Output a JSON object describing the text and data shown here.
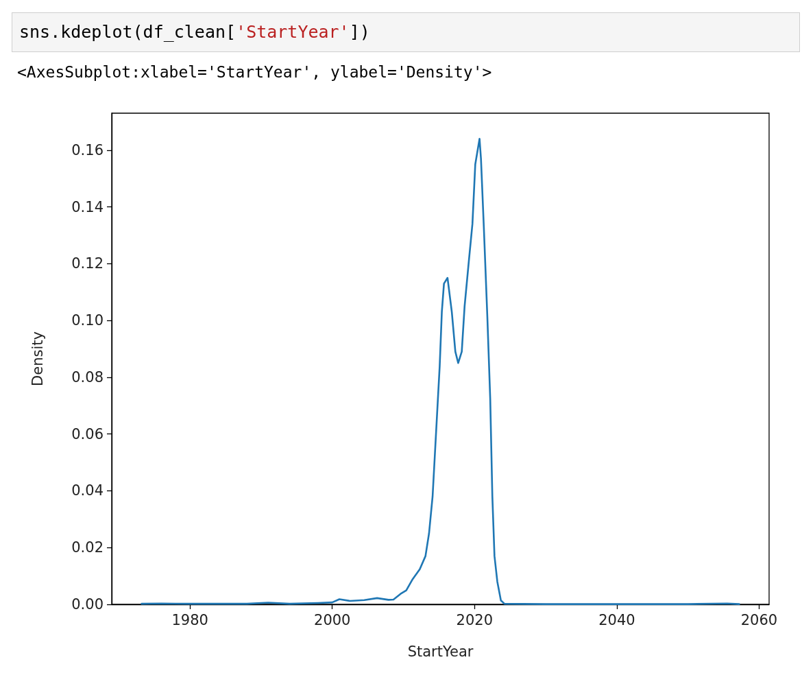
{
  "chart_data": {
    "type": "line",
    "annotations": [
      "sns.kdeplot(df_clean['StartYear'])",
      "<AxesSubplot:xlabel='StartYear', ylabel='Density'>"
    ],
    "xlabel": "StartYear",
    "ylabel": "Density",
    "series": [
      {
        "color": "#1f77b4",
        "x": [
          1973.2,
          1976,
          1980,
          1988,
          1991,
          1994,
          1998,
          2000,
          2001,
          2002.5,
          2004.5,
          2006.3,
          2007.9,
          2008.6,
          2009.6,
          2010.4,
          2011.3,
          2012.3,
          2013.1,
          2013.6,
          2014.1,
          2014.6,
          2015.1,
          2015.4,
          2015.7,
          2016.2,
          2016.8,
          2017.3,
          2017.7,
          2018.2,
          2018.6,
          2019.2,
          2019.7,
          2020.1,
          2020.7,
          2020.9,
          2021.3,
          2021.8,
          2022.2,
          2022.5,
          2022.8,
          2023.2,
          2023.7,
          2024.2,
          2030,
          2040,
          2050,
          2055.5,
          2057.2
        ],
        "values": [
          0.0002,
          0.0003,
          0.0002,
          0.0002,
          0.0006,
          0.0002,
          0.0005,
          0.0007,
          0.0018,
          0.0012,
          0.0015,
          0.0022,
          0.0016,
          0.0017,
          0.0037,
          0.0049,
          0.0089,
          0.0124,
          0.017,
          0.025,
          0.038,
          0.061,
          0.084,
          0.103,
          0.113,
          0.115,
          0.103,
          0.089,
          0.085,
          0.089,
          0.105,
          0.121,
          0.134,
          0.155,
          0.164,
          0.157,
          0.133,
          0.101,
          0.0725,
          0.038,
          0.017,
          0.008,
          0.0014,
          0.0002,
          0.0001,
          0.0001,
          0.0001,
          0.0003,
          0.0001
        ]
      }
    ],
    "xlim": [
      1969,
      2061.4
    ],
    "xticks": [
      1980,
      2000,
      2020,
      2040,
      2060
    ],
    "ylim": [
      0,
      0.173
    ],
    "yticks": [
      {
        "value": 0,
        "label": "0.00"
      },
      {
        "value": 0.02,
        "label": "0.02"
      },
      {
        "value": 0.04,
        "label": "0.04"
      },
      {
        "value": 0.06,
        "label": "0.06"
      },
      {
        "value": 0.08,
        "label": "0.08"
      },
      {
        "value": 0.1,
        "label": "0.10"
      },
      {
        "value": 0.12,
        "label": "0.12"
      },
      {
        "value": 0.14,
        "label": "0.14"
      },
      {
        "value": 0.16,
        "label": "0.16"
      }
    ],
    "grid": false,
    "marker": "none",
    "line_style": "solid"
  }
}
